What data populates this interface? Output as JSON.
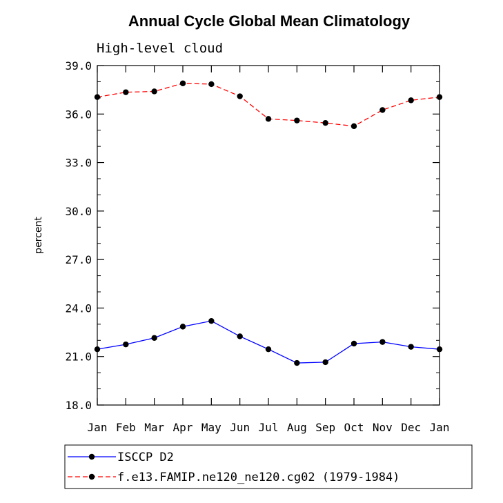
{
  "chart_data": {
    "type": "line",
    "title": "Annual Cycle Global Mean Climatology",
    "subtitle": "High-level cloud",
    "xlabel": "",
    "ylabel": "percent",
    "categories": [
      "Jan",
      "Feb",
      "Mar",
      "Apr",
      "May",
      "Jun",
      "Jul",
      "Aug",
      "Sep",
      "Oct",
      "Nov",
      "Dec",
      "Jan"
    ],
    "ylim": [
      18.0,
      39.0
    ],
    "yticks": [
      "18.0",
      "21.0",
      "24.0",
      "27.0",
      "30.0",
      "33.0",
      "36.0",
      "39.0"
    ],
    "series": [
      {
        "name": "ISCCP D2",
        "color": "#0000ff",
        "dash": "solid",
        "values": [
          21.45,
          21.75,
          22.15,
          22.85,
          23.2,
          22.25,
          21.45,
          20.6,
          20.65,
          21.8,
          21.9,
          21.6,
          21.45
        ]
      },
      {
        "name": "f.e13.FAMIP.ne120_ne120.cg02 (1979-1984)",
        "color": "#ff0000",
        "dash": "dashed",
        "values": [
          37.05,
          37.35,
          37.4,
          37.9,
          37.85,
          37.1,
          35.7,
          35.6,
          35.45,
          35.25,
          36.25,
          36.85,
          37.05
        ]
      }
    ]
  }
}
